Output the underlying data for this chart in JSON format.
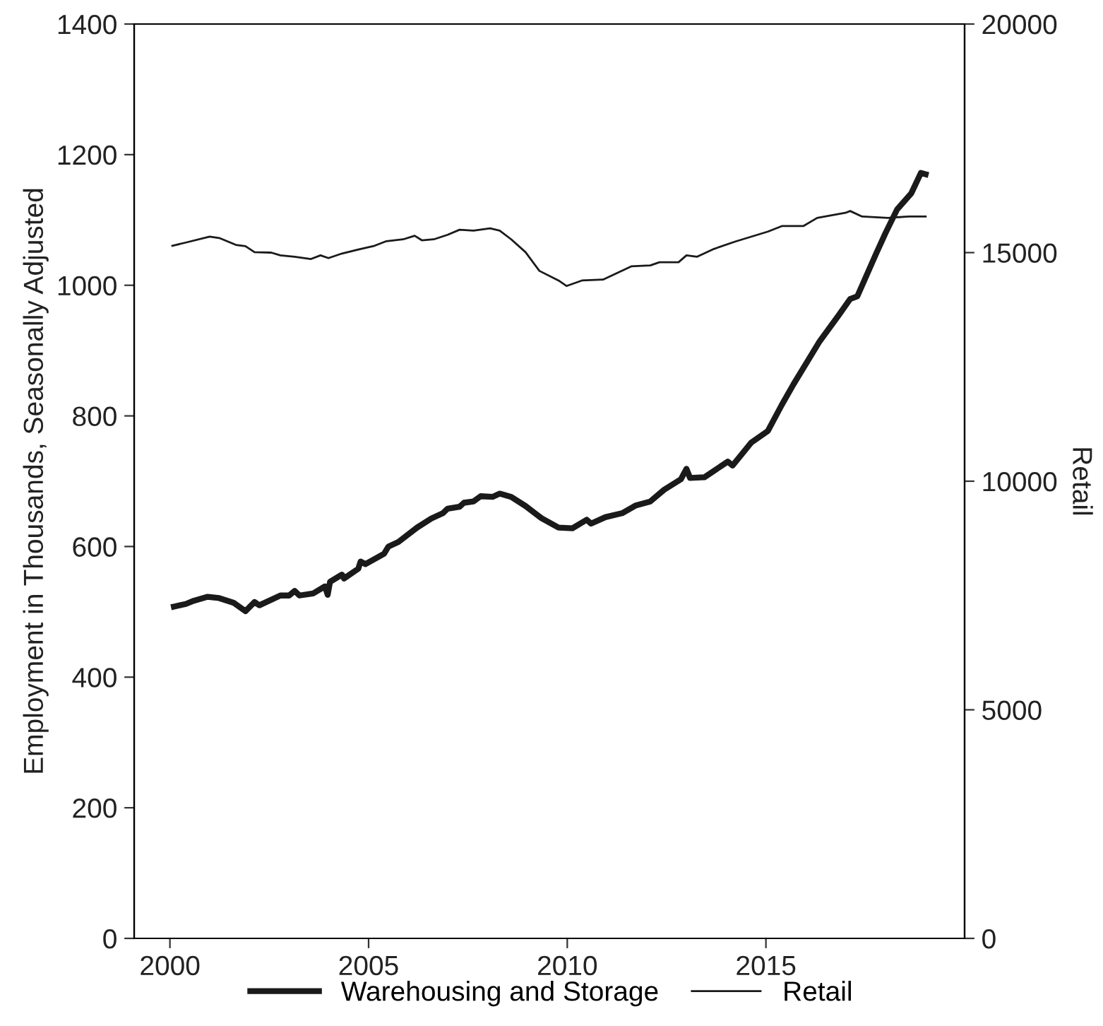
{
  "chart_data": {
    "type": "line",
    "ylabel": "Employment in Thousands, Seasonally Adjusted",
    "y2label": "Retail",
    "xlim": [
      1999.1,
      2020
    ],
    "xticks": [
      2000,
      2005,
      2010,
      2015
    ],
    "ylim": [
      0,
      1400
    ],
    "yticks": [
      0,
      200,
      400,
      600,
      800,
      1000,
      1200,
      1400
    ],
    "y2lim": [
      0,
      20000
    ],
    "y2ticks": [
      0,
      5000,
      10000,
      15000,
      20000
    ],
    "grid": false,
    "legend": "bottom",
    "marker": "none",
    "line_style": "solid",
    "series": [
      {
        "name": "Warehousing and Storage",
        "color": "#1a1a1a",
        "x": [
          2000.1,
          2000.4,
          2000.6,
          2000.95,
          2001.24,
          2001.6,
          2001.9,
          2002.13,
          2002.25,
          2002.78,
          2003.0,
          2003.14,
          2003.26,
          2003.6,
          2003.9,
          2003.97,
          2004.03,
          2004.33,
          2004.38,
          2004.74,
          2004.8,
          2004.92,
          2005.39,
          2005.5,
          2005.75,
          2006.22,
          2006.58,
          2006.87,
          2006.99,
          2007.29,
          2007.4,
          2007.64,
          2007.82,
          2008.12,
          2008.3,
          2008.59,
          2008.95,
          2009.36,
          2009.78,
          2010.13,
          2010.49,
          2010.6,
          2010.96,
          2011.38,
          2011.73,
          2012.09,
          2012.44,
          2012.86,
          2013.0,
          2013.09,
          2013.45,
          2014.04,
          2014.16,
          2014.63,
          2015.05,
          2015.4,
          2015.7,
          2016.35,
          2016.83,
          2017.12,
          2017.3,
          2017.77,
          2018.01,
          2018.3,
          2018.66,
          2018.9,
          2019.02
        ],
        "values": [
          508,
          512,
          517,
          523,
          521,
          514,
          501,
          515,
          510,
          525,
          525,
          532,
          525,
          528,
          539,
          526,
          546,
          557,
          551,
          566,
          577,
          573,
          589,
          600,
          607,
          629,
          643,
          651,
          658,
          661,
          667,
          669,
          677,
          676,
          681,
          676,
          662,
          643,
          629,
          628,
          641,
          635,
          645,
          651,
          663,
          669,
          687,
          703,
          719,
          705,
          706,
          730,
          724,
          759,
          777,
          817,
          849,
          914,
          954,
          979,
          983,
          1048,
          1080,
          1116,
          1141,
          1172,
          1170
        ]
      },
      {
        "name": "Retail",
        "color": "#1a1a1a",
        "axis": "y2",
        "x": [
          2000.06,
          2000.4,
          2001.0,
          2001.24,
          2001.66,
          2001.9,
          2002.13,
          2002.55,
          2002.78,
          2003.14,
          2003.55,
          2003.79,
          2003.99,
          2004.33,
          2004.8,
          2005.15,
          2005.45,
          2005.87,
          2006.16,
          2006.34,
          2006.64,
          2006.99,
          2007.29,
          2007.64,
          2008.06,
          2008.3,
          2008.59,
          2008.95,
          2009.3,
          2009.78,
          2009.98,
          2010.37,
          2010.9,
          2011.61,
          2012.09,
          2012.32,
          2012.8,
          2013.0,
          2013.27,
          2013.69,
          2014.22,
          2015.05,
          2015.4,
          2015.94,
          2016.29,
          2017.0,
          2017.12,
          2017.42,
          2018.07,
          2018.6,
          2019.02
        ],
        "values": [
          15150,
          15220,
          15350,
          15320,
          15170,
          15140,
          15010,
          15000,
          14940,
          14910,
          14860,
          14940,
          14880,
          14980,
          15080,
          15150,
          15250,
          15290,
          15370,
          15270,
          15290,
          15390,
          15500,
          15480,
          15530,
          15480,
          15290,
          15010,
          14600,
          14390,
          14270,
          14390,
          14410,
          14700,
          14720,
          14790,
          14790,
          14940,
          14910,
          15080,
          15240,
          15460,
          15580,
          15580,
          15760,
          15870,
          15910,
          15790,
          15760,
          15790,
          15790
        ]
      }
    ]
  }
}
